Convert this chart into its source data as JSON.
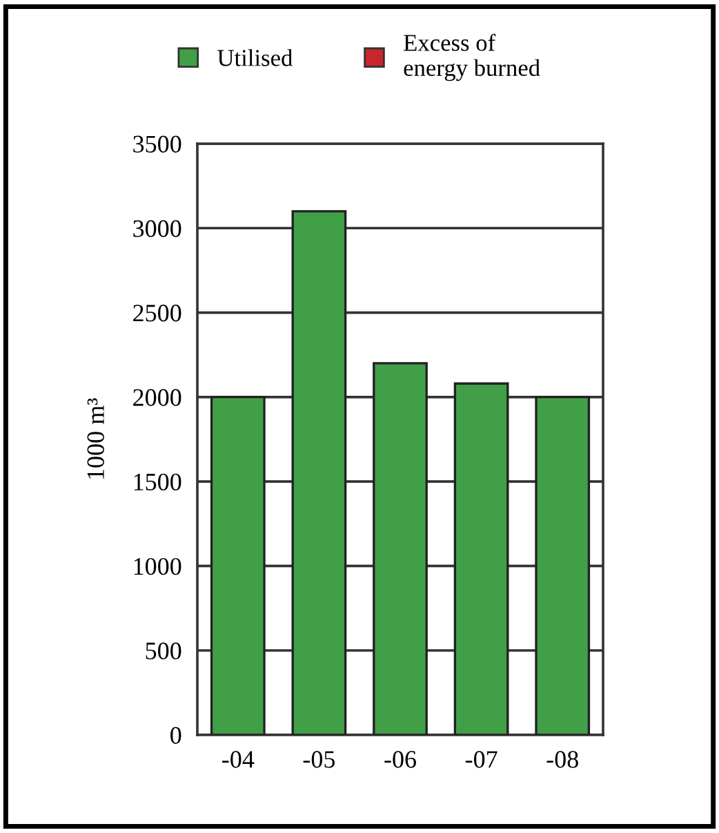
{
  "chart_data": {
    "type": "bar",
    "ylabel": "1000 m³",
    "categories": [
      "-04",
      "-05",
      "-06",
      "-07",
      "-08"
    ],
    "series": [
      {
        "name": "Utilised",
        "color": "#41a047",
        "values": [
          2000,
          3100,
          2200,
          2080,
          2000
        ]
      },
      {
        "name": "Excess of\nenergy burned",
        "color": "#c8262a",
        "values": [
          null,
          null,
          null,
          null,
          null
        ]
      }
    ],
    "stacked": true,
    "ylim": [
      0,
      3500
    ],
    "yticks": [
      0,
      500,
      1000,
      1500,
      2000,
      2500,
      3000,
      3500
    ],
    "grid": "y",
    "legend": "top"
  }
}
